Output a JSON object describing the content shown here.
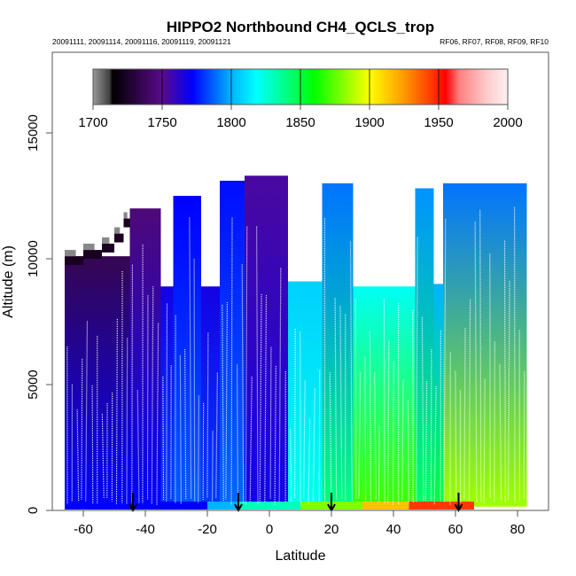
{
  "chart_data": {
    "type": "heatmap",
    "title": "HIPPO2 Northbound CH4_QCLS_trop",
    "subtitle_left": "20091111, 20091114, 20091116, 20091119, 20091121",
    "subtitle_right": "RF06, RF07, RF08, RF09, RF10",
    "xlabel": "Latitude",
    "ylabel": "Altitude (m)",
    "xlim": [
      -70,
      90
    ],
    "ylim": [
      0,
      18000
    ],
    "x_ticks": [
      -60,
      -40,
      -20,
      0,
      20,
      40,
      60,
      80
    ],
    "x_tick_labels": [
      "-60",
      "-40",
      "-20",
      "0",
      "20",
      "40",
      "60",
      "80"
    ],
    "y_ticks": [
      0,
      5000,
      10000,
      15000
    ],
    "y_tick_labels": [
      "0",
      "5000",
      "10000",
      "15000"
    ],
    "colorbar": {
      "range": [
        1700,
        2000
      ],
      "ticks": [
        1700,
        1750,
        1800,
        1850,
        1900,
        1950,
        2000
      ],
      "tick_labels": [
        "1700",
        "1750",
        "1800",
        "1850",
        "1900",
        "1950",
        "2000"
      ],
      "stops": [
        {
          "value": 1700,
          "color": "#9a9a9a"
        },
        {
          "value": 1712,
          "color": "#404040"
        },
        {
          "value": 1714,
          "color": "#000000"
        },
        {
          "value": 1750,
          "color": "#5a0a8a"
        },
        {
          "value": 1772,
          "color": "#0000ff"
        },
        {
          "value": 1800,
          "color": "#00b4ff"
        },
        {
          "value": 1818,
          "color": "#00ffff"
        },
        {
          "value": 1835,
          "color": "#00ffa0"
        },
        {
          "value": 1860,
          "color": "#00ff00"
        },
        {
          "value": 1880,
          "color": "#80ff00"
        },
        {
          "value": 1900,
          "color": "#ffff00"
        },
        {
          "value": 1925,
          "color": "#ff9900"
        },
        {
          "value": 1950,
          "color": "#ff2000"
        },
        {
          "value": 1955,
          "color": "#ff0000"
        },
        {
          "value": 1965,
          "color": "#ff8080"
        },
        {
          "value": 1985,
          "color": "#ffcccc"
        },
        {
          "value": 2000,
          "color": "#fff0f0"
        }
      ]
    },
    "curtain_segments": [
      {
        "lat_range": [
          -66,
          -45
        ],
        "top_alt": 10100,
        "ch4_ppb": 1765,
        "note": "purple/blue, darker near top"
      },
      {
        "lat_range": [
          -45,
          -35
        ],
        "top_alt": 12000,
        "ch4_ppb": 1760
      },
      {
        "lat_range": [
          -35,
          -31
        ],
        "top_alt": 8900,
        "ch4_ppb": 1775
      },
      {
        "lat_range": [
          -31,
          -22
        ],
        "top_alt": 12500,
        "ch4_ppb": 1780
      },
      {
        "lat_range": [
          -22,
          -16
        ],
        "top_alt": 8900,
        "ch4_ppb": 1775
      },
      {
        "lat_range": [
          -16,
          -8
        ],
        "top_alt": 13100,
        "ch4_ppb": 1782
      },
      {
        "lat_range": [
          -8,
          6
        ],
        "top_alt": 13300,
        "ch4_ppb": 1762
      },
      {
        "lat_range": [
          6,
          17
        ],
        "top_alt": 9100,
        "ch4_ppb": 1815
      },
      {
        "lat_range": [
          17,
          27
        ],
        "top_alt": 13000,
        "ch4_ppb": 1825
      },
      {
        "lat_range": [
          27,
          47
        ],
        "top_alt": 8900,
        "ch4_ppb": 1855
      },
      {
        "lat_range": [
          47,
          53
        ],
        "top_alt": 12800,
        "ch4_ppb": 1830
      },
      {
        "lat_range": [
          53,
          56
        ],
        "top_alt": 9000,
        "ch4_ppb": 1835
      },
      {
        "lat_range": [
          56,
          83
        ],
        "top_alt": 13000,
        "ch4_ppb": 1820,
        "note": "blue/cyan aloft, green-yellow below"
      }
    ],
    "surface_band": [
      {
        "lat_range": [
          -66,
          -20
        ],
        "ch4_ppb": 1772
      },
      {
        "lat_range": [
          -20,
          -10
        ],
        "ch4_ppb": 1800
      },
      {
        "lat_range": [
          -10,
          10
        ],
        "ch4_ppb": 1830
      },
      {
        "lat_range": [
          10,
          30
        ],
        "ch4_ppb": 1880
      },
      {
        "lat_range": [
          30,
          45
        ],
        "ch4_ppb": 1915
      },
      {
        "lat_range": [
          45,
          66
        ],
        "ch4_ppb": 1945
      }
    ],
    "arrow_latitudes": [
      -44,
      -10,
      20,
      61
    ]
  }
}
